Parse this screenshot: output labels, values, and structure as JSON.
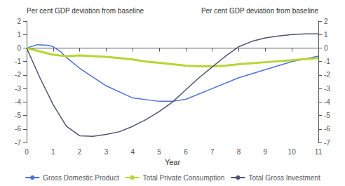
{
  "chart_data": {
    "type": "line",
    "ylabel": "Per cent GDP deviation from baseline",
    "y2label": "Per cent GDP deviation from baseline",
    "xlabel": "Year",
    "xlim": [
      0,
      11
    ],
    "xticks": [
      0,
      1,
      2,
      3,
      4,
      5,
      6,
      7,
      8,
      9,
      10,
      11
    ],
    "ylim": [
      -7,
      2
    ],
    "yticks": [
      -7,
      -6,
      -5,
      -4,
      -3,
      -2,
      -1,
      0,
      1,
      2
    ],
    "y2lim": [
      -7,
      2
    ],
    "y2ticks": [
      -7,
      -6,
      -5,
      -4,
      -3,
      -2,
      -1,
      0,
      1,
      2
    ],
    "grid": false,
    "legend": "bottom",
    "series": [
      {
        "name": "Gross Domestic Product",
        "x": [
          0,
          0.4,
          0.8,
          1.0,
          1.3,
          1.5,
          2.0,
          3.0,
          4.0,
          5.0,
          5.5,
          6.0,
          7.0,
          8.0,
          9.0,
          10.0,
          11.0
        ],
        "values": [
          0,
          0.25,
          0.2,
          0.1,
          -0.3,
          -0.7,
          -1.5,
          -2.8,
          -3.7,
          -3.95,
          -3.95,
          -3.8,
          -3.0,
          -2.2,
          -1.6,
          -1.0,
          -0.6
        ]
      },
      {
        "name": "Total Private Consumption",
        "x": [
          0,
          0.5,
          1.0,
          1.5,
          2.0,
          2.5,
          3.0,
          3.5,
          4.0,
          4.5,
          5.0,
          5.5,
          6.0,
          6.5,
          7.0,
          7.5,
          8.0,
          9.0,
          10.0,
          11.0
        ],
        "values": [
          0,
          -0.25,
          -0.5,
          -0.6,
          -0.55,
          -0.6,
          -0.65,
          -0.75,
          -0.85,
          -1.0,
          -1.1,
          -1.2,
          -1.3,
          -1.35,
          -1.35,
          -1.3,
          -1.2,
          -1.05,
          -0.9,
          -0.75
        ]
      },
      {
        "name": "Total Gross Investment",
        "x": [
          0,
          0.5,
          1.0,
          1.5,
          2.0,
          2.5,
          3.0,
          3.5,
          4.0,
          4.5,
          5.0,
          5.5,
          6.0,
          6.5,
          7.0,
          7.5,
          8.0,
          8.5,
          9.0,
          9.5,
          10.0,
          10.5,
          11.0
        ],
        "values": [
          0,
          -2.2,
          -4.2,
          -5.8,
          -6.5,
          -6.55,
          -6.4,
          -6.2,
          -5.8,
          -5.3,
          -4.7,
          -4.0,
          -3.1,
          -2.2,
          -1.4,
          -0.6,
          0.1,
          0.5,
          0.75,
          0.9,
          1.0,
          1.05,
          1.05
        ]
      }
    ]
  }
}
